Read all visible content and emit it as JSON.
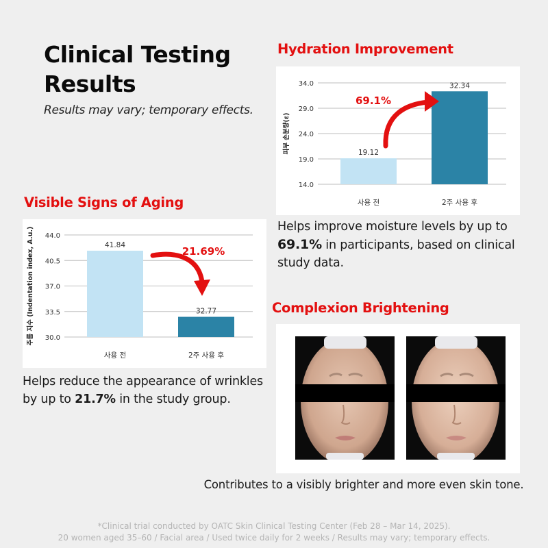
{
  "header": {
    "title": "Clinical Testing Results",
    "subtitle": "Results may vary; temporary effects."
  },
  "hydration": {
    "heading": "Hydration Improvement",
    "desc_before": "Helps improve moisture levels by up to ",
    "desc_highlight": "69.1%",
    "desc_after": " in participants, based on clinical study data.",
    "change_label": "69.1%"
  },
  "aging": {
    "heading": "Visible Signs of Aging",
    "desc_before": "Helps reduce the appearance of wrinkles by up to ",
    "desc_highlight": "21.7%",
    "desc_after": " in the study group.",
    "change_label": "21.69%"
  },
  "brightening": {
    "heading": "Complexion Brightening",
    "desc": "Contributes to a visibly brighter and more even skin tone."
  },
  "footnote": {
    "line1": "*Clinical trial conducted by OATC Skin Clinical Testing Center (Feb 28 – Mar 14, 2025).",
    "line2": "20 women aged 35–60 / Facial area / Used twice daily for 2 weeks / Results may vary; temporary effects."
  },
  "colors": {
    "accent_red": "#e31010",
    "bar_before": "#c2e3f4",
    "bar_after": "#2b83a6"
  },
  "chart_data": [
    {
      "type": "bar",
      "title": "",
      "ylabel": "피부 손분량(ε)",
      "xlabel": "",
      "categories": [
        "사용 전",
        "2주 사용 후"
      ],
      "values": [
        19.12,
        32.34
      ],
      "value_labels": [
        "19.12",
        "32.34"
      ],
      "ylim": [
        14.0,
        34.0
      ],
      "yticks": [
        14.0,
        19.0,
        24.0,
        29.0,
        34.0
      ],
      "ytick_labels": [
        "14.0",
        "19.0",
        "24.0",
        "29.0",
        "34.0"
      ],
      "grid": true
    },
    {
      "type": "bar",
      "title": "",
      "ylabel": "주름 지수 (Indentation index, A.u.)",
      "xlabel": "",
      "categories": [
        "사용 전",
        "2주 사용 후"
      ],
      "values": [
        41.84,
        32.77
      ],
      "value_labels": [
        "41.84",
        "32.77"
      ],
      "ylim": [
        30.0,
        44.0
      ],
      "yticks": [
        30.0,
        33.5,
        37.0,
        40.5,
        44.0
      ],
      "ytick_labels": [
        "30.0",
        "33.5",
        "37.0",
        "40.5",
        "44.0"
      ],
      "grid": true
    }
  ]
}
